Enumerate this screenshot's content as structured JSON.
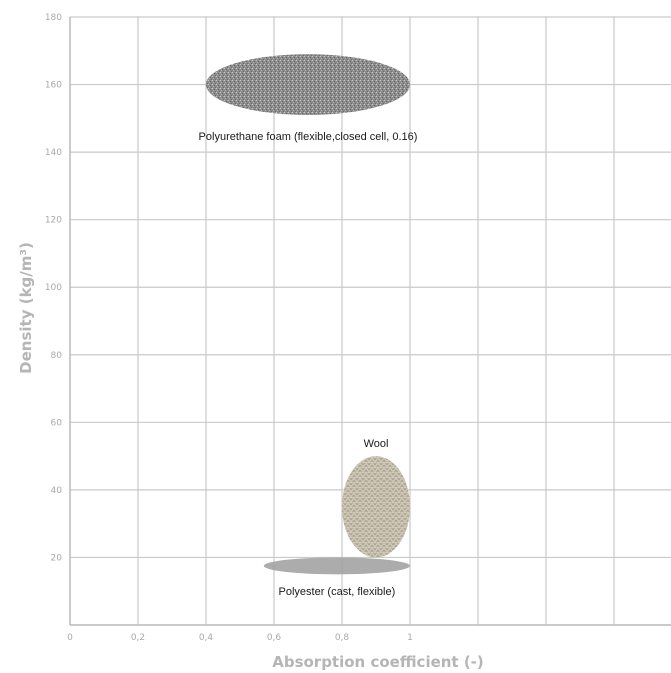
{
  "chart_data": {
    "type": "scatter",
    "title": "",
    "xlabel": "Absorption coefficient (-)",
    "ylabel": "Density (kg/m³)",
    "xlim": [
      0,
      1.8
    ],
    "ylim": [
      0,
      180
    ],
    "x_ticks": [
      "0",
      "0,2",
      "0,4",
      "0,6",
      "0,8",
      "1"
    ],
    "y_ticks": [
      "20",
      "40",
      "60",
      "80",
      "100",
      "120",
      "140",
      "160",
      "180"
    ],
    "grid": true,
    "regions": [
      {
        "label": "Polyurethane foam (flexible,closed cell, 0.16)",
        "x_range": [
          0.4,
          1.0
        ],
        "y_range": [
          151,
          169
        ],
        "texture": "foam",
        "color": "#8f8f8f"
      },
      {
        "label": "Wool",
        "x_range": [
          0.8,
          1.0
        ],
        "y_range": [
          20,
          50
        ],
        "texture": "knit",
        "color": "#c4bcaa"
      },
      {
        "label": "Polyester (cast, flexible)",
        "x_range": [
          0.57,
          1.0
        ],
        "y_range": [
          15,
          20
        ],
        "texture": "solid",
        "color": "#a3a3a3"
      }
    ]
  }
}
